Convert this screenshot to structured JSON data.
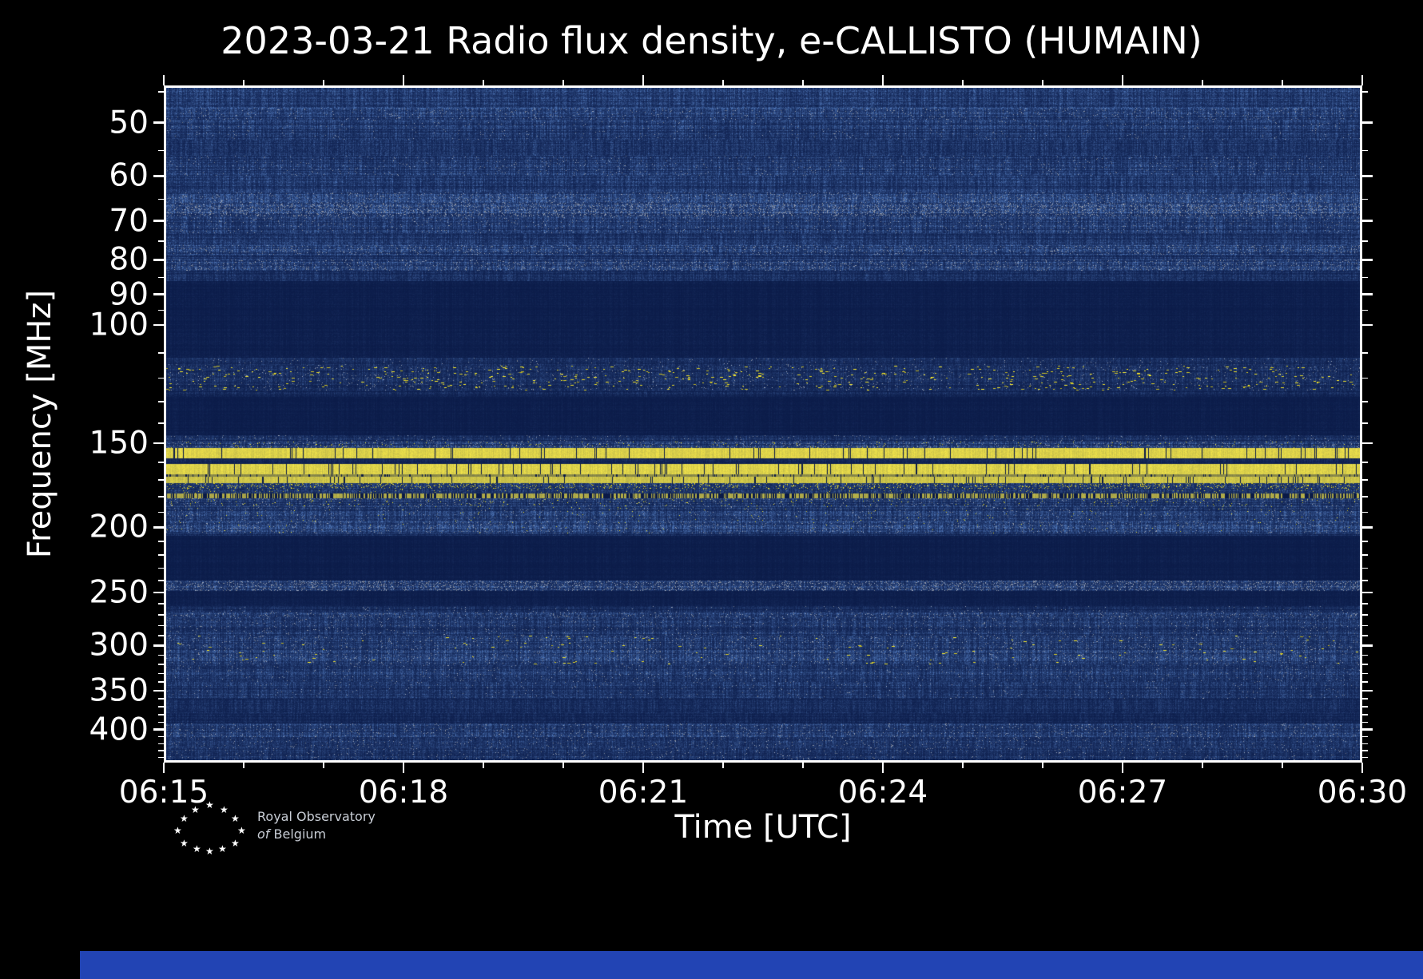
{
  "chart_data": {
    "type": "heatmap",
    "title": "2023-03-21 Radio flux density, e-CALLISTO (HUMAIN)",
    "xlabel": "Time [UTC]",
    "ylabel": "Frequency [MHz]",
    "x_major_ticks": [
      "06:15",
      "06:18",
      "06:21",
      "06:24",
      "06:27",
      "06:30"
    ],
    "x_major_minutes": [
      0,
      3,
      6,
      9,
      12,
      15
    ],
    "x_minor_minutes": [
      1,
      2,
      4,
      5,
      7,
      8,
      10,
      11,
      13,
      14
    ],
    "x_total_minutes": 15,
    "y_scale": "log",
    "y_min_mhz": 44,
    "y_max_mhz": 448,
    "y_major_ticks_mhz": [
      50,
      60,
      70,
      80,
      90,
      100,
      150,
      200,
      250,
      300,
      350,
      400
    ],
    "y_minor_ticks_mhz": [
      45,
      55,
      65,
      75,
      85,
      95,
      110,
      120,
      130,
      140,
      160,
      170,
      180,
      190,
      210,
      220,
      230,
      240,
      260,
      270,
      280,
      290,
      310,
      320,
      330,
      340,
      360,
      370,
      380,
      390,
      410,
      420,
      430,
      440
    ],
    "legend": "none",
    "grid": false,
    "colors": {
      "background": "#0a1a47",
      "noise": "#4d74b5",
      "gray": "#9aa4b8",
      "bright": "#f6e84a",
      "frame": "#ffffff",
      "text": "#ffffff"
    },
    "bands": [
      {
        "f": [
          44,
          47.5
        ],
        "n": 0.5
      },
      {
        "f": [
          47.5,
          49.5
        ],
        "n": 0.62,
        "g": 0.03
      },
      {
        "f": [
          49.5,
          53
        ],
        "n": 0.5,
        "g": 0.01
      },
      {
        "f": [
          53,
          56
        ],
        "n": 0.4
      },
      {
        "f": [
          56,
          60
        ],
        "n": 0.5,
        "g": 0.015
      },
      {
        "f": [
          60,
          63.5
        ],
        "n": 0.45
      },
      {
        "f": [
          63.5,
          66
        ],
        "n": 0.58,
        "g": 0.05
      },
      {
        "f": [
          66,
          69
        ],
        "n": 0.68,
        "g": 0.12
      },
      {
        "f": [
          69,
          73
        ],
        "n": 0.5,
        "g": 0.02
      },
      {
        "f": [
          73,
          76
        ],
        "n": 0.42
      },
      {
        "f": [
          76,
          78.5
        ],
        "n": 0.58,
        "g": 0.05
      },
      {
        "f": [
          78.5,
          80
        ],
        "n": 0.4
      },
      {
        "f": [
          80,
          83
        ],
        "n": 0.6,
        "g": 0.06
      },
      {
        "f": [
          83,
          86
        ],
        "n": 0.32
      },
      {
        "f": [
          86,
          112
        ],
        "n": 0.08
      },
      {
        "f": [
          112,
          115
        ],
        "n": 0.3,
        "g": 0.01
      },
      {
        "f": [
          115,
          125
        ],
        "n": 0.32,
        "g": 0.02,
        "y": 0.01,
        "b": 1
      },
      {
        "f": [
          125,
          128
        ],
        "n": 0.22
      },
      {
        "f": [
          128,
          146
        ],
        "n": 0.07
      },
      {
        "f": [
          146,
          149
        ],
        "n": 0.3,
        "g": 0.02
      },
      {
        "f": [
          149,
          152.5
        ],
        "n": 0.5,
        "g": 0.05,
        "y": 0.02
      },
      {
        "f": [
          152.5,
          158
        ],
        "s": 1.0,
        "t": 0.05
      },
      {
        "f": [
          158,
          161
        ],
        "n": 0.15
      },
      {
        "f": [
          161,
          166.8
        ],
        "s": 1.0,
        "t": 0.05
      },
      {
        "f": [
          166.8,
          168
        ],
        "s": 0.6,
        "t": 0.12
      },
      {
        "f": [
          168,
          172
        ],
        "s": 0.92,
        "t": 0.06
      },
      {
        "f": [
          172,
          175
        ],
        "n": 0.55,
        "y": 0.1
      },
      {
        "f": [
          175,
          178
        ],
        "n": 0.38,
        "y": 0.02
      },
      {
        "f": [
          178,
          181
        ],
        "s": 0.78,
        "d": 0.45
      },
      {
        "f": [
          181,
          186
        ],
        "n": 0.5,
        "g": 0.03,
        "y": 0.015
      },
      {
        "f": [
          186,
          196
        ],
        "n": 0.48,
        "g": 0.02,
        "y": 0.004
      },
      {
        "f": [
          196,
          204
        ],
        "n": 0.58,
        "g": 0.04,
        "y": 0.003
      },
      {
        "f": [
          204,
          206
        ],
        "n": 0.3
      },
      {
        "f": [
          206,
          240
        ],
        "n": 0.07
      },
      {
        "f": [
          240,
          249
        ],
        "n": 0.52,
        "g": 0.12
      },
      {
        "f": [
          249,
          262
        ],
        "n": 0.09
      },
      {
        "f": [
          262,
          268
        ],
        "n": 0.3,
        "g": 0.01
      },
      {
        "f": [
          268,
          272
        ],
        "n": 0.5,
        "g": 0.05
      },
      {
        "f": [
          272,
          290
        ],
        "n": 0.45,
        "g": 0.02
      },
      {
        "f": [
          290,
          320
        ],
        "n": 0.5,
        "g": 0.03,
        "y": 0.0025,
        "b": 1
      },
      {
        "f": [
          320,
          340
        ],
        "n": 0.45,
        "g": 0.015
      },
      {
        "f": [
          340,
          360
        ],
        "n": 0.4,
        "g": 0.01
      },
      {
        "f": [
          360,
          378
        ],
        "n": 0.26
      },
      {
        "f": [
          378,
          392
        ],
        "n": 0.2
      },
      {
        "f": [
          392,
          410
        ],
        "n": 0.5,
        "g": 0.035
      },
      {
        "f": [
          410,
          425
        ],
        "n": 0.44,
        "g": 0.02
      },
      {
        "f": [
          425,
          448
        ],
        "n": 0.4,
        "g": 0.02
      }
    ]
  },
  "footer": {
    "logo_line1": "Royal Observatory",
    "logo_line2_prefix": "of",
    "logo_line2_word": "Belgium",
    "bar_color": "#2244b4"
  }
}
